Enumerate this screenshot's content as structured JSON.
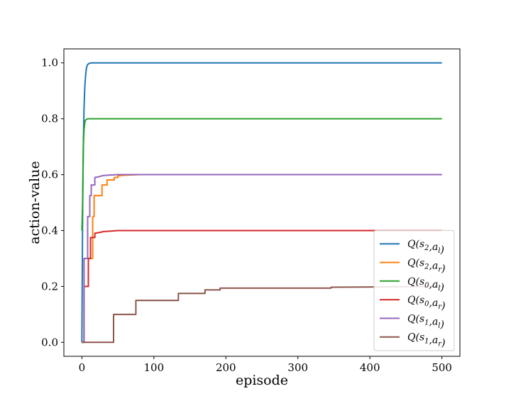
{
  "chart_data": {
    "type": "line",
    "title": "",
    "xlabel": "episode",
    "ylabel": "action-value",
    "xlim": [
      -25,
      525
    ],
    "ylim": [
      -0.05,
      1.05
    ],
    "xticks": [
      0,
      100,
      200,
      300,
      400,
      500
    ],
    "xtick_labels": [
      "0",
      "100",
      "200",
      "300",
      "400",
      "500"
    ],
    "yticks": [
      0.0,
      0.2,
      0.4,
      0.6,
      0.8,
      1.0
    ],
    "ytick_labels": [
      "0.0",
      "0.2",
      "0.4",
      "0.6",
      "0.8",
      "1.0"
    ],
    "grid": false,
    "legend_position": "lower-right",
    "series": [
      {
        "name": "Q(s₂,aₗ)",
        "label": {
          "base": "Q(s",
          "sub1": "2",
          "mid": ",a",
          "sub2": "l",
          "end": ")"
        },
        "color": "#1f77b4",
        "points": [
          [
            0,
            0.0
          ],
          [
            1,
            0.45
          ],
          [
            2,
            0.7
          ],
          [
            3,
            0.84
          ],
          [
            4,
            0.91
          ],
          [
            5,
            0.95
          ],
          [
            6,
            0.975
          ],
          [
            7,
            0.988
          ],
          [
            8,
            0.994
          ],
          [
            10,
            0.998
          ],
          [
            13,
            1.0
          ],
          [
            500,
            1.0
          ]
        ]
      },
      {
        "name": "Q(s₂,aᵣ)",
        "label": {
          "base": "Q(s",
          "sub1": "2",
          "mid": ",a",
          "sub2": "r",
          "end": ")"
        },
        "color": "#ff7f0e",
        "points": [
          [
            0,
            0.0
          ],
          [
            3,
            0.0
          ],
          [
            3,
            0.3
          ],
          [
            15,
            0.3
          ],
          [
            15,
            0.45
          ],
          [
            17,
            0.45
          ],
          [
            17,
            0.525
          ],
          [
            28,
            0.525
          ],
          [
            28,
            0.563
          ],
          [
            35,
            0.563
          ],
          [
            35,
            0.581
          ],
          [
            45,
            0.581
          ],
          [
            45,
            0.59
          ],
          [
            50,
            0.59
          ],
          [
            50,
            0.596
          ],
          [
            60,
            0.598
          ],
          [
            80,
            0.6
          ],
          [
            500,
            0.6
          ]
        ]
      },
      {
        "name": "Q(s₀,aₗ)",
        "label": {
          "base": "Q(s",
          "sub1": "0",
          "mid": ",a",
          "sub2": "l",
          "end": ")"
        },
        "color": "#2ca02c",
        "points": [
          [
            0,
            0.4
          ],
          [
            1,
            0.5
          ],
          [
            2,
            0.7
          ],
          [
            3,
            0.76
          ],
          [
            4,
            0.785
          ],
          [
            5,
            0.795
          ],
          [
            7,
            0.799
          ],
          [
            10,
            0.8
          ],
          [
            500,
            0.8
          ]
        ]
      },
      {
        "name": "Q(s₀,aᵣ)",
        "label": {
          "base": "Q(s",
          "sub1": "0",
          "mid": ",a",
          "sub2": "r",
          "end": ")"
        },
        "color": "#d62728",
        "points": [
          [
            0,
            0.0
          ],
          [
            3,
            0.0
          ],
          [
            3,
            0.2
          ],
          [
            9,
            0.2
          ],
          [
            9,
            0.3
          ],
          [
            12,
            0.3
          ],
          [
            12,
            0.375
          ],
          [
            18,
            0.375
          ],
          [
            18,
            0.39
          ],
          [
            24,
            0.393
          ],
          [
            30,
            0.396
          ],
          [
            40,
            0.398
          ],
          [
            50,
            0.4
          ],
          [
            500,
            0.4
          ]
        ]
      },
      {
        "name": "Q(s₁,aₗ)",
        "label": {
          "base": "Q(s",
          "sub1": "1",
          "mid": ",a",
          "sub2": "l",
          "end": ")"
        },
        "color": "#9467bd",
        "points": [
          [
            0,
            0.0
          ],
          [
            3,
            0.0
          ],
          [
            3,
            0.3
          ],
          [
            8,
            0.3
          ],
          [
            8,
            0.45
          ],
          [
            11,
            0.45
          ],
          [
            11,
            0.525
          ],
          [
            13,
            0.525
          ],
          [
            13,
            0.563
          ],
          [
            18,
            0.563
          ],
          [
            18,
            0.59
          ],
          [
            23,
            0.592
          ],
          [
            28,
            0.596
          ],
          [
            35,
            0.598
          ],
          [
            50,
            0.6
          ],
          [
            500,
            0.6
          ]
        ]
      },
      {
        "name": "Q(s₁,aᵣ)",
        "label": {
          "base": "Q(s",
          "sub1": "1",
          "mid": ",a",
          "sub2": "r",
          "end": ")"
        },
        "color": "#8c564b",
        "points": [
          [
            0,
            0.0
          ],
          [
            44,
            0.0
          ],
          [
            44,
            0.1
          ],
          [
            75,
            0.1
          ],
          [
            75,
            0.15
          ],
          [
            134,
            0.15
          ],
          [
            134,
            0.175
          ],
          [
            171,
            0.175
          ],
          [
            171,
            0.1875
          ],
          [
            192,
            0.1875
          ],
          [
            192,
            0.194
          ],
          [
            346,
            0.194
          ],
          [
            346,
            0.197
          ],
          [
            500,
            0.2
          ]
        ]
      }
    ]
  }
}
